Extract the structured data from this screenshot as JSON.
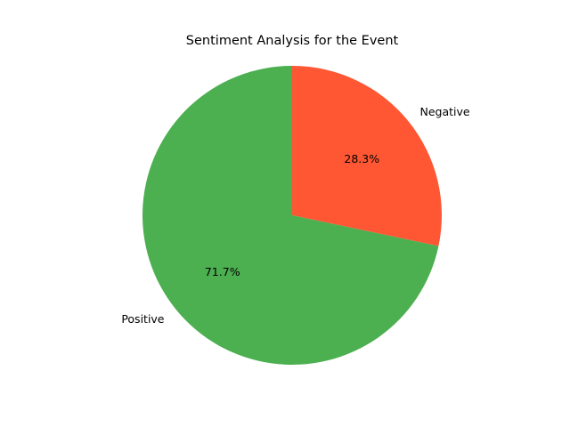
{
  "chart_data": {
    "type": "pie",
    "title": "Sentiment Analysis for the Event",
    "slices": [
      {
        "label": "Negative",
        "value": 28.3,
        "pct_label": "28.3%",
        "color": "#ff5733"
      },
      {
        "label": "Positive",
        "value": 71.7,
        "pct_label": "71.7%",
        "color": "#4caf50"
      }
    ],
    "start_angle_deg": 90,
    "direction": "clockwise",
    "legend": "none"
  }
}
